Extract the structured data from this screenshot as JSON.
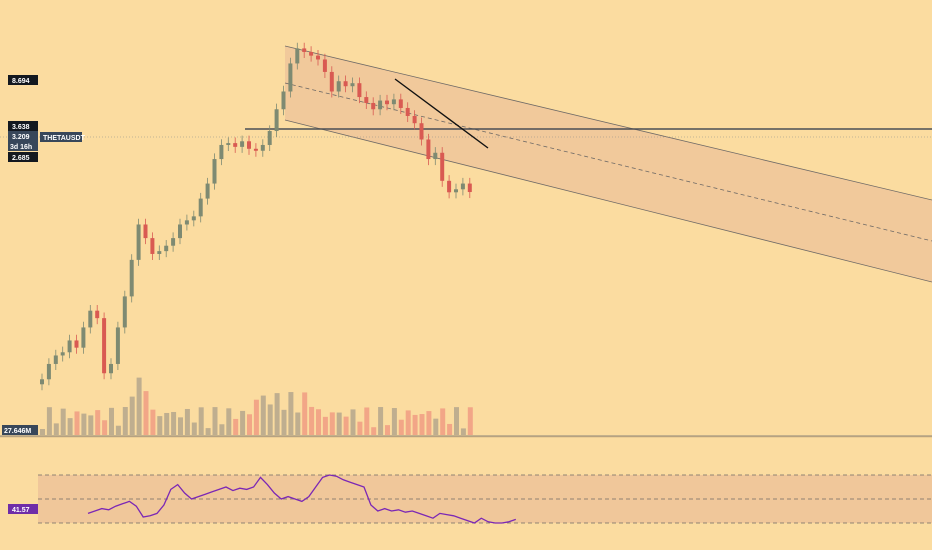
{
  "colors": {
    "background": "#fbdca0",
    "up": "#7e8a72",
    "down": "#d95a52",
    "channel_fill": "#f0c79a",
    "channel_line": "#6f6a66",
    "rsi": "#7b27b5",
    "rsi_band": "#f0c79a",
    "badge_dark": "#13181f",
    "badge_rsi": "#6f2da8",
    "symbol_badge": "#38475a"
  },
  "price_panel": {
    "y_ticks": [
      "",
      "",
      "",
      "",
      "",
      "",
      "",
      "",
      "",
      "",
      "",
      "",
      "",
      "",
      "",
      "",
      "",
      ""
    ],
    "labels": {
      "high": "8.694",
      "level": "3.638",
      "last": "3.209",
      "countdown": "3d 16h",
      "low": "2.685",
      "symbol": "THETAUSDT"
    }
  },
  "volume_panel": {
    "label": "27.646M"
  },
  "rsi_panel": {
    "value_label": "41.57",
    "upper": 70,
    "middle": 50,
    "lower": 30,
    "upper_label": "",
    "lower_label": ""
  },
  "x_axis": {
    "ticks": [
      "",
      "",
      "",
      "",
      "",
      "",
      "",
      "",
      "",
      "",
      "",
      "",
      "",
      "",
      "",
      ""
    ]
  },
  "chart_data": {
    "type": "candlestick",
    "symbol": "THETAUSDT",
    "last_price": 3.209,
    "marked_levels": [
      8.694,
      3.638,
      2.685
    ],
    "volume_label": "27.646M",
    "rsi_last": 41.57,
    "rsi_bands": [
      70,
      50,
      30
    ],
    "candles_close_approx": [
      0.47,
      0.55,
      0.6,
      0.62,
      0.7,
      0.65,
      0.8,
      0.95,
      0.88,
      0.5,
      0.55,
      0.8,
      1.1,
      1.6,
      2.3,
      2.0,
      1.7,
      1.75,
      1.85,
      2.0,
      2.3,
      2.4,
      2.5,
      3.0,
      3.5,
      4.5,
      5.2,
      5.3,
      5.1,
      5.4,
      5.0,
      4.9,
      5.2,
      6.0,
      7.5,
      9.0,
      12.0,
      14.0,
      13.5,
      13.0,
      12.5,
      11.0,
      9.0,
      10.0,
      9.5,
      9.8,
      8.5,
      8.0,
      7.5,
      8.2,
      7.9,
      8.3,
      7.6,
      7.0,
      6.5,
      5.5,
      4.5,
      4.8,
      3.6,
      3.2,
      3.3,
      3.5,
      3.209
    ]
  }
}
